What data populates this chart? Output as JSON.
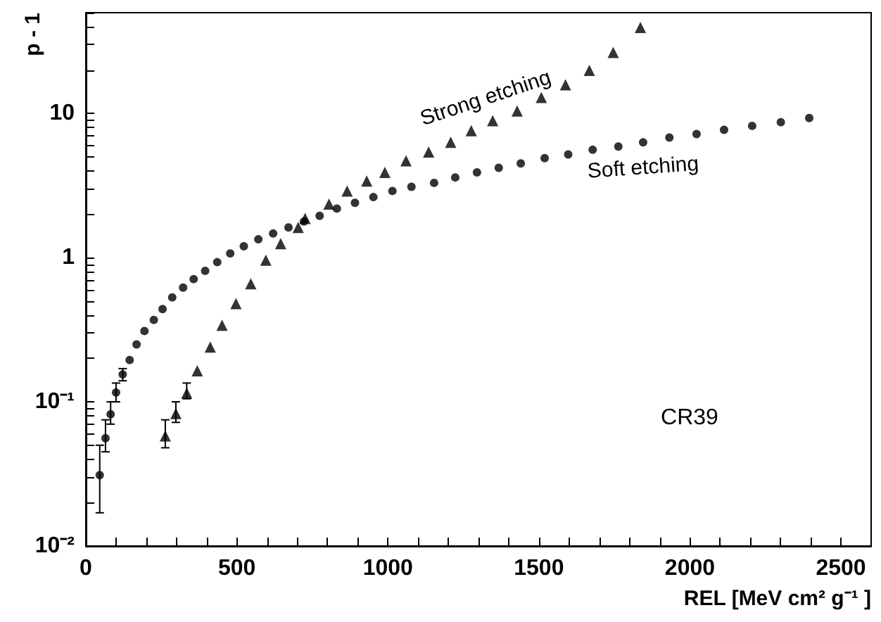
{
  "chart_data": {
    "type": "scatter",
    "xlabel": "REL [MeV cm² g⁻¹ ]",
    "ylabel": "p - 1",
    "annotations": [
      "CR39"
    ],
    "log": "y",
    "grid": false,
    "legend": false,
    "xlim": [
      0,
      2600
    ],
    "xticks": [
      0,
      {
        "value": 100,
        "label": null
      },
      {
        "value": 200,
        "label": null
      },
      {
        "value": 300,
        "label": null
      },
      {
        "value": 400,
        "label": null
      },
      500,
      {
        "value": 600,
        "label": null
      },
      {
        "value": 700,
        "label": null
      },
      {
        "value": 800,
        "label": null
      },
      {
        "value": 900,
        "label": null
      },
      1000,
      {
        "value": 1100,
        "label": null
      },
      {
        "value": 1200,
        "label": null
      },
      {
        "value": 1300,
        "label": null
      },
      {
        "value": 1400,
        "label": null
      },
      1500,
      {
        "value": 1600,
        "label": null
      },
      {
        "value": 1700,
        "label": null
      },
      {
        "value": 1800,
        "label": null
      },
      {
        "value": 1900,
        "label": null
      },
      2000,
      {
        "value": 2100,
        "label": null
      },
      {
        "value": 2200,
        "label": null
      },
      {
        "value": 2300,
        "label": null
      },
      {
        "value": 2400,
        "label": null
      },
      2500
    ],
    "ylim": [
      0.01,
      50
    ],
    "yticks": [
      {
        "value": 0.01,
        "label": "10⁻²"
      },
      {
        "value": 0.02,
        "label": null
      },
      {
        "value": 0.03,
        "label": null
      },
      {
        "value": 0.04,
        "label": null
      },
      {
        "value": 0.05,
        "label": null
      },
      {
        "value": 0.06,
        "label": null
      },
      {
        "value": 0.07,
        "label": null
      },
      {
        "value": 0.08,
        "label": null
      },
      {
        "value": 0.09,
        "label": null
      },
      {
        "value": 0.1,
        "label": "10⁻¹"
      },
      {
        "value": 0.2,
        "label": null
      },
      {
        "value": 0.3,
        "label": null
      },
      {
        "value": 0.4,
        "label": null
      },
      {
        "value": 0.5,
        "label": null
      },
      {
        "value": 0.6,
        "label": null
      },
      {
        "value": 0.7,
        "label": null
      },
      {
        "value": 0.8,
        "label": null
      },
      {
        "value": 0.9,
        "label": null
      },
      1,
      {
        "value": 2,
        "label": null
      },
      {
        "value": 3,
        "label": null
      },
      {
        "value": 4,
        "label": null
      },
      {
        "value": 5,
        "label": null
      },
      {
        "value": 6,
        "label": null
      },
      {
        "value": 7,
        "label": null
      },
      {
        "value": 8,
        "label": null
      },
      {
        "value": 9,
        "label": null
      },
      10,
      {
        "value": 20,
        "label": null
      },
      {
        "value": 30,
        "label": null
      },
      {
        "value": 40,
        "label": null
      },
      {
        "value": 50,
        "label": null
      }
    ],
    "series": [
      {
        "name": "Soft etching",
        "color": "#000000",
        "marker": "circle",
        "x": [
          46,
          65,
          82,
          100,
          122,
          145,
          168,
          194,
          225,
          254,
          286,
          322,
          357,
          395,
          435,
          478,
          523,
          571,
          620,
          671,
          722,
          774,
          831,
          891,
          952,
          1015,
          1078,
          1153,
          1223,
          1295,
          1367,
          1440,
          1519,
          1597,
          1678,
          1763,
          1845,
          1932,
          2022,
          2113,
          2206,
          2301,
          2395
        ],
        "values": [
          0.031,
          0.056,
          0.082,
          0.116,
          0.155,
          0.195,
          0.25,
          0.31,
          0.37,
          0.44,
          0.53,
          0.62,
          0.71,
          0.81,
          0.93,
          1.07,
          1.2,
          1.34,
          1.47,
          1.62,
          1.78,
          1.95,
          2.19,
          2.4,
          2.63,
          2.9,
          3.1,
          3.3,
          3.6,
          3.9,
          4.2,
          4.5,
          4.9,
          5.2,
          5.6,
          5.9,
          6.3,
          6.8,
          7.2,
          7.7,
          8.2,
          8.7,
          9.3
        ],
        "errors": [
          [
            0.017,
            0.05
          ],
          [
            0.045,
            0.075
          ],
          [
            0.07,
            0.1
          ],
          [
            0.1,
            0.135
          ],
          [
            0.14,
            0.17
          ],
          null,
          null,
          null,
          null,
          null,
          null,
          null,
          null,
          null,
          null,
          null,
          null,
          null,
          null,
          null,
          null,
          null,
          null,
          null,
          null,
          null,
          null,
          null,
          null,
          null,
          null,
          null,
          null,
          null,
          null,
          null,
          null,
          null,
          null,
          null,
          null,
          null,
          null
        ]
      },
      {
        "name": "Strong etching",
        "color": "#000000",
        "marker": "triangle",
        "x": [
          263,
          298,
          334,
          369,
          412,
          451,
          497,
          546,
          596,
          645,
          703,
          726,
          805,
          865,
          930,
          990,
          1060,
          1135,
          1208,
          1276,
          1347,
          1428,
          1508,
          1588,
          1667,
          1746,
          1836
        ],
        "values": [
          0.058,
          0.083,
          0.115,
          0.164,
          0.24,
          0.34,
          0.48,
          0.66,
          0.96,
          1.25,
          1.62,
          1.87,
          2.35,
          2.9,
          3.4,
          3.9,
          4.7,
          5.4,
          6.3,
          7.6,
          8.9,
          10.4,
          12.9,
          15.8,
          19.9,
          26.5,
          39.5
        ],
        "errors": [
          [
            0.048,
            0.075
          ],
          [
            0.072,
            0.1
          ],
          [
            0.105,
            0.135
          ],
          null,
          null,
          null,
          null,
          null,
          null,
          null,
          null,
          null,
          null,
          null,
          null,
          null,
          null,
          null,
          null,
          null,
          null,
          null,
          null,
          null,
          null,
          null,
          null
        ]
      }
    ]
  }
}
